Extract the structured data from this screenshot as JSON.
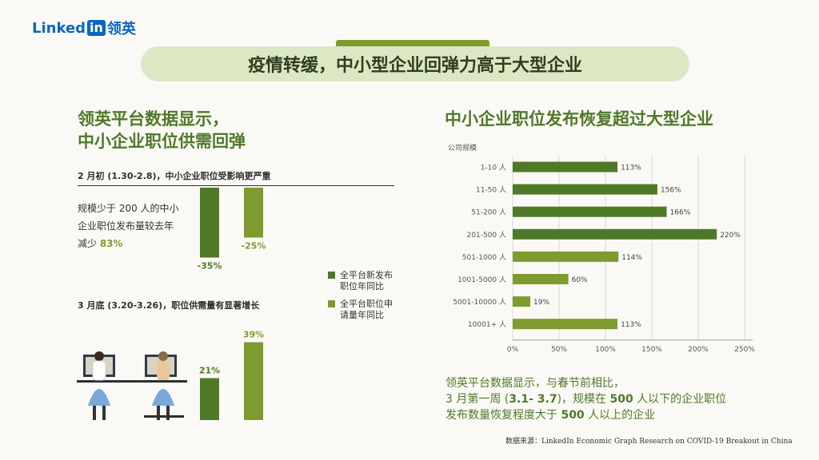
{
  "brand": {
    "name": "Linked",
    "in": "in",
    "cn": "领英"
  },
  "title": "疫情转缓，中小型企业回弹力高于大型企业",
  "left": {
    "heading_line1": "领英平台数据显示，",
    "heading_line2": "中小企业职位供需回弹",
    "section1_label": "2 月初 (1.30-2.8)，中小企业职位受影响更严重",
    "desc_line1": "规模少于 200 人的中小",
    "desc_line2": "企业职位发布量较去年",
    "desc_prefix": "减少 ",
    "desc_highlight": "83%",
    "section2_label": "3 月底 (3.20-3.26)，职位供需量有显著增长",
    "legend": [
      {
        "label_line1": "全平台新发布",
        "label_line2": "职位年同比",
        "color": "#4e7a28"
      },
      {
        "label_line1": "全平台职位申",
        "label_line2": "请量年同比",
        "color": "#7e9c2e"
      }
    ]
  },
  "right": {
    "heading": "中小企业职位发布恢复超过大型企业",
    "note_line1": "领英平台数据显示，与春节前相比，",
    "note_l2_a": "3 月第一周 (",
    "note_l2_b": "3.1- 3.7",
    "note_l2_c": ")，规模在 ",
    "note_l2_d": "500",
    "note_l2_e": " 人以下的企业职位",
    "note_l3_a": "发布数量恢复程度大于 ",
    "note_l3_b": "500",
    "note_l3_c": " 人以上的企业"
  },
  "source": "数据来源：LinkedIn Economic Graph Research on COVID-19 Breakout in China",
  "chart_data": [
    {
      "type": "bar",
      "title": "2 月初 (1.30-2.8)，中小企业职位受影响更严重",
      "series": [
        {
          "name": "全平台新发布职位年同比",
          "values": [
            -35
          ],
          "labels": [
            "-35%"
          ],
          "color": "#4e7a28"
        },
        {
          "name": "全平台职位申请量年同比",
          "values": [
            -25
          ],
          "labels": [
            "-25%"
          ],
          "color": "#7e9c2e"
        }
      ]
    },
    {
      "type": "bar",
      "title": "3 月底 (3.20-3.26)，职位供需量有显著增长",
      "series": [
        {
          "name": "全平台新发布职位年同比",
          "values": [
            21
          ],
          "labels": [
            "21%"
          ],
          "color": "#4e7a28"
        },
        {
          "name": "全平台职位申请量年同比",
          "values": [
            39
          ],
          "labels": [
            "39%"
          ],
          "color": "#7e9c2e"
        }
      ]
    },
    {
      "type": "bar",
      "orientation": "horizontal",
      "title": "中小企业职位发布恢复超过大型企业",
      "ylabel": "公司规模",
      "categories": [
        "1-10 人",
        "11-50 人",
        "51-200 人",
        "201-500 人",
        "501-1000 人",
        "1001-5000 人",
        "5001-10000 人",
        "10001+ 人"
      ],
      "values": [
        113,
        156,
        166,
        220,
        114,
        60,
        19,
        113
      ],
      "value_labels": [
        "113%",
        "156%",
        "166%",
        "220%",
        "114%",
        "60%",
        "19%",
        "113%"
      ],
      "colors": [
        "#4e7a28",
        "#4e7a28",
        "#4e7a28",
        "#4e7a28",
        "#7e9c2e",
        "#7e9c2e",
        "#7e9c2e",
        "#7e9c2e"
      ],
      "xlim": [
        0,
        250
      ],
      "xticks": [
        0,
        50,
        100,
        150,
        200,
        250
      ],
      "xtick_labels": [
        "0%",
        "50%",
        "100%",
        "150%",
        "200%",
        "250%"
      ],
      "grid": true
    }
  ]
}
